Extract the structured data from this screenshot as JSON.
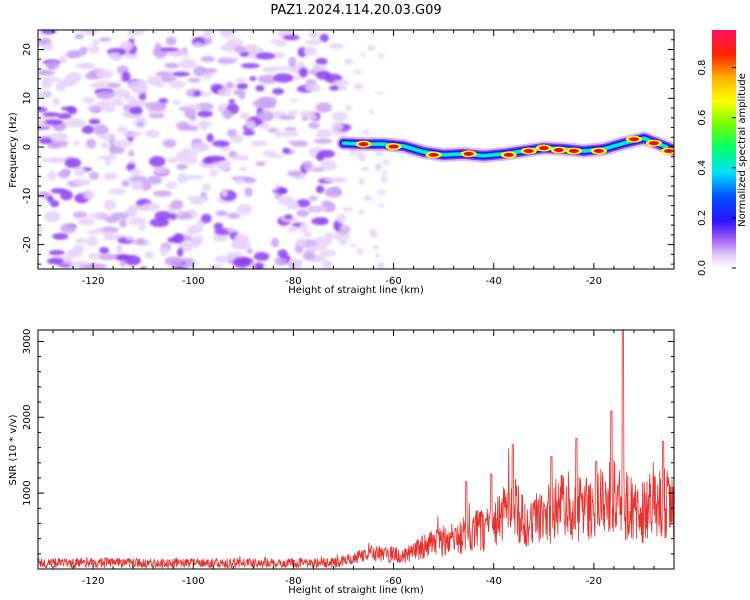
{
  "title": "PAZ1.2024.114.20.03.G09",
  "colors": {
    "snr_line": "#e8302c",
    "colormap": [
      "#ffffff",
      "#e6d2fa",
      "#c9a3f5",
      "#8a3cf0",
      "#1414ff",
      "#00c8ff",
      "#00ff8c",
      "#6eff00",
      "#ffff00",
      "#ffa000",
      "#ff0000",
      "#ff1464"
    ]
  },
  "chart_data": [
    {
      "type": "heatmap",
      "xlabel": "Height of straight line (km)",
      "ylabel": "Frequency (Hz)",
      "xlim": [
        -131,
        -4
      ],
      "ylim": [
        -25,
        24
      ],
      "xticks": [
        -120,
        -100,
        -80,
        -60,
        -40,
        -20
      ],
      "yticks": [
        -20,
        -10,
        0,
        10,
        20
      ],
      "xtick_labels": [
        "-120",
        "-100",
        "-80",
        "-60",
        "-40",
        "-20"
      ],
      "ytick_labels": [
        "-20",
        "-10",
        "0",
        "10",
        "20"
      ],
      "noise_region": [
        -131,
        -70
      ],
      "signal_track": [
        {
          "x": -70,
          "y": 0.8
        },
        {
          "x": -66,
          "y": 0.6
        },
        {
          "x": -62,
          "y": 0.6
        },
        {
          "x": -58,
          "y": 0.2
        },
        {
          "x": -54,
          "y": -1.0
        },
        {
          "x": -50,
          "y": -1.6
        },
        {
          "x": -46,
          "y": -1.4
        },
        {
          "x": -42,
          "y": -1.8
        },
        {
          "x": -38,
          "y": -1.4
        },
        {
          "x": -34,
          "y": -0.8
        },
        {
          "x": -30,
          "y": -0.2
        },
        {
          "x": -26,
          "y": -0.4
        },
        {
          "x": -22,
          "y": -0.8
        },
        {
          "x": -18,
          "y": -0.4
        },
        {
          "x": -14,
          "y": 0.8
        },
        {
          "x": -10,
          "y": 1.8
        },
        {
          "x": -7,
          "y": 0.6
        },
        {
          "x": -4,
          "y": -0.6
        }
      ],
      "hotspots": [
        {
          "x": -66,
          "y": 0.6
        },
        {
          "x": -60,
          "y": 0.1
        },
        {
          "x": -52,
          "y": -1.6
        },
        {
          "x": -45,
          "y": -1.4
        },
        {
          "x": -37,
          "y": -1.6
        },
        {
          "x": -33,
          "y": -0.8
        },
        {
          "x": -30,
          "y": -0.2
        },
        {
          "x": -27,
          "y": -0.6
        },
        {
          "x": -24,
          "y": -0.8
        },
        {
          "x": -19,
          "y": -0.8
        },
        {
          "x": -12,
          "y": 1.6
        },
        {
          "x": -8,
          "y": 0.8
        },
        {
          "x": -5,
          "y": -0.8
        }
      ]
    },
    {
      "type": "line",
      "xlabel": "Height of straight line (km)",
      "ylabel": "SNR (10 * v/v)",
      "xlim": [
        -131,
        -4
      ],
      "ylim": [
        0,
        3150
      ],
      "xticks": [
        -120,
        -100,
        -80,
        -60,
        -40,
        -20
      ],
      "yticks": [
        1000,
        2000,
        3000
      ],
      "xtick_labels": [
        "-120",
        "-100",
        "-80",
        "-60",
        "-40",
        "-20"
      ],
      "ytick_labels": [
        "1000",
        "2000",
        "3000"
      ],
      "envelope": [
        {
          "x": -131,
          "y": 130
        },
        {
          "x": -120,
          "y": 140
        },
        {
          "x": -110,
          "y": 130
        },
        {
          "x": -100,
          "y": 130
        },
        {
          "x": -90,
          "y": 130
        },
        {
          "x": -80,
          "y": 130
        },
        {
          "x": -72,
          "y": 140
        },
        {
          "x": -68,
          "y": 200
        },
        {
          "x": -65,
          "y": 330
        },
        {
          "x": -62,
          "y": 300
        },
        {
          "x": -58,
          "y": 260
        },
        {
          "x": -55,
          "y": 400
        },
        {
          "x": -50,
          "y": 560
        },
        {
          "x": -46,
          "y": 660
        },
        {
          "x": -42,
          "y": 780
        },
        {
          "x": -38,
          "y": 1050
        },
        {
          "x": -36,
          "y": 1200
        },
        {
          "x": -33,
          "y": 900
        },
        {
          "x": -30,
          "y": 1000
        },
        {
          "x": -26,
          "y": 1250
        },
        {
          "x": -23,
          "y": 1200
        },
        {
          "x": -20,
          "y": 1150
        },
        {
          "x": -17,
          "y": 1500
        },
        {
          "x": -15,
          "y": 1300
        },
        {
          "x": -12,
          "y": 1150
        },
        {
          "x": -9,
          "y": 1100
        },
        {
          "x": -6,
          "y": 1300
        },
        {
          "x": -4,
          "y": 1150
        }
      ],
      "spikes": [
        {
          "x": -14.2,
          "y": 3140
        },
        {
          "x": -16.5,
          "y": 2080
        },
        {
          "x": -23.5,
          "y": 1720
        },
        {
          "x": -36.2,
          "y": 1640
        },
        {
          "x": -6.2,
          "y": 1680
        },
        {
          "x": -40.5,
          "y": 1250
        },
        {
          "x": -28.5,
          "y": 1480
        },
        {
          "x": -45.5,
          "y": 1150
        },
        {
          "x": -19.5,
          "y": 1420
        }
      ]
    },
    {
      "type": "colorbar",
      "label": "Normalized spectral amplitude",
      "range": [
        0,
        0.95
      ],
      "ticks": [
        0.0,
        0.2,
        0.4,
        0.6,
        0.8
      ],
      "tick_labels": [
        "0.0",
        "0.2",
        "0.4",
        "0.6",
        "0.8"
      ]
    }
  ]
}
